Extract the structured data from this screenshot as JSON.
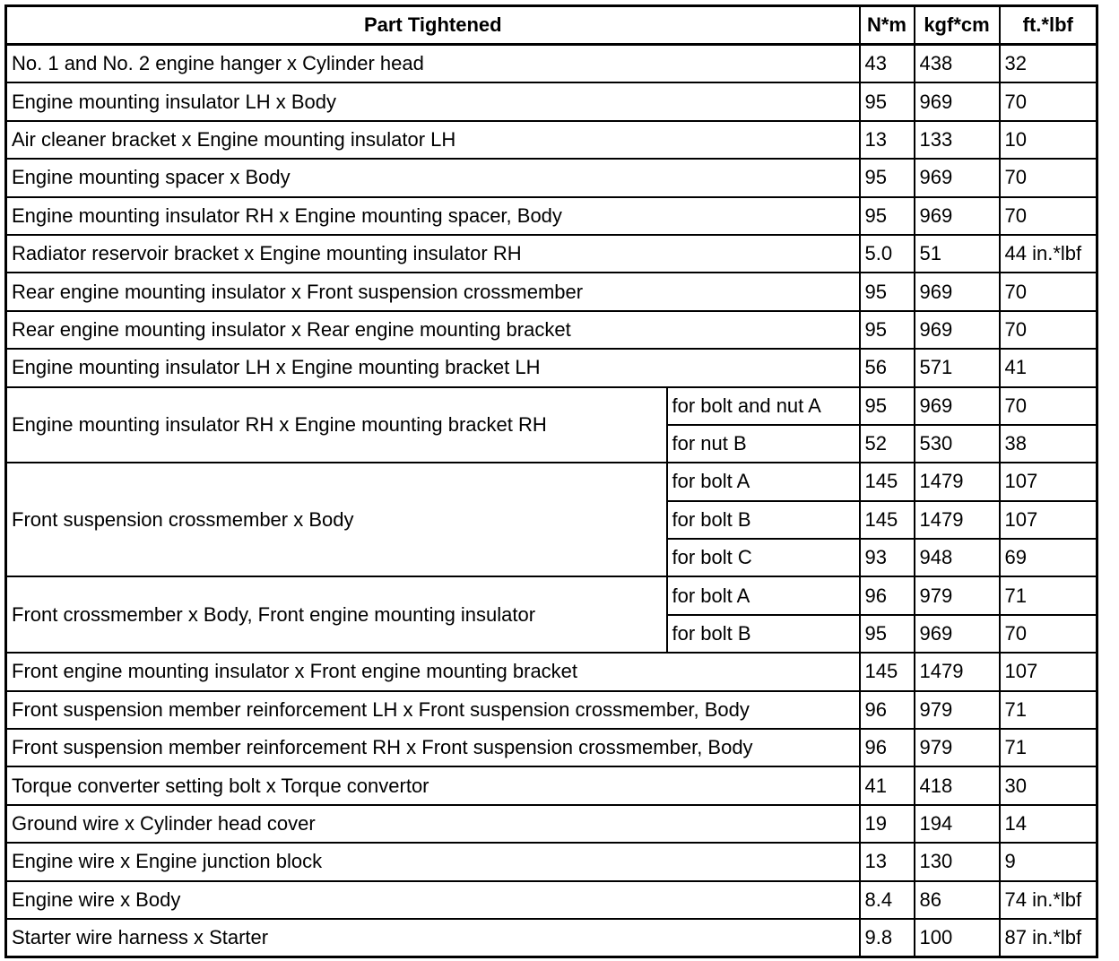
{
  "headers": {
    "part": "Part Tightened",
    "nm": "N*m",
    "kgf": "kgf*cm",
    "ft": "ft.*lbf"
  },
  "rows": [
    {
      "part": "No. 1 and No. 2 engine hanger x Cylinder head",
      "nm": "43",
      "kgf": "438",
      "ft": "32"
    },
    {
      "part": "Engine mounting insulator LH x Body",
      "nm": "95",
      "kgf": "969",
      "ft": "70"
    },
    {
      "part": "Air cleaner bracket x Engine mounting insulator LH",
      "nm": "13",
      "kgf": "133",
      "ft": "10"
    },
    {
      "part": "Engine mounting spacer x Body",
      "nm": "95",
      "kgf": "969",
      "ft": "70"
    },
    {
      "part": "Engine mounting insulator RH x Engine mounting spacer, Body",
      "nm": "95",
      "kgf": "969",
      "ft": "70"
    },
    {
      "part": "Radiator reservoir bracket x Engine mounting insulator RH",
      "nm": "5.0",
      "kgf": "51",
      "ft": "44 in.*lbf"
    },
    {
      "part": "Rear engine mounting insulator x Front suspension crossmember",
      "nm": "95",
      "kgf": "969",
      "ft": "70"
    },
    {
      "part": "Rear engine mounting insulator x Rear engine mounting bracket",
      "nm": "95",
      "kgf": "969",
      "ft": "70"
    },
    {
      "part": "Engine mounting insulator LH x Engine mounting bracket LH",
      "nm": "56",
      "kgf": "571",
      "ft": "41"
    },
    {
      "part": "Engine mounting insulator RH x Engine mounting bracket RH",
      "sub": [
        {
          "label": "for bolt and nut A",
          "nm": "95",
          "kgf": "969",
          "ft": "70"
        },
        {
          "label": "for nut B",
          "nm": "52",
          "kgf": "530",
          "ft": "38"
        }
      ]
    },
    {
      "part": "Front suspension crossmember x Body",
      "sub": [
        {
          "label": "for bolt A",
          "nm": "145",
          "kgf": "1479",
          "ft": "107"
        },
        {
          "label": "for bolt B",
          "nm": "145",
          "kgf": "1479",
          "ft": "107"
        },
        {
          "label": "for bolt C",
          "nm": "93",
          "kgf": "948",
          "ft": "69"
        }
      ]
    },
    {
      "part": "Front crossmember x Body, Front engine mounting insulator",
      "sub": [
        {
          "label": "for bolt A",
          "nm": "96",
          "kgf": "979",
          "ft": "71"
        },
        {
          "label": "for bolt B",
          "nm": "95",
          "kgf": "969",
          "ft": "70"
        }
      ]
    },
    {
      "part": "Front engine mounting insulator x Front engine mounting bracket",
      "nm": "145",
      "kgf": "1479",
      "ft": "107"
    },
    {
      "part": "Front suspension member reinforcement LH x Front suspension crossmember, Body",
      "nm": "96",
      "kgf": "979",
      "ft": "71"
    },
    {
      "part": "Front suspension member reinforcement RH x Front suspension crossmember, Body",
      "nm": "96",
      "kgf": "979",
      "ft": "71"
    },
    {
      "part": "Torque converter setting bolt x Torque convertor",
      "nm": "41",
      "kgf": "418",
      "ft": "30"
    },
    {
      "part": "Ground wire x Cylinder head cover",
      "nm": "19",
      "kgf": "194",
      "ft": "14"
    },
    {
      "part": "Engine wire x Engine junction block",
      "nm": "13",
      "kgf": "130",
      "ft": "9"
    },
    {
      "part": "Engine wire x Body",
      "nm": "8.4",
      "kgf": "86",
      "ft": "74 in.*lbf"
    },
    {
      "part": "Starter wire harness x Starter",
      "nm": "9.8",
      "kgf": "100",
      "ft": "87 in.*lbf"
    }
  ]
}
